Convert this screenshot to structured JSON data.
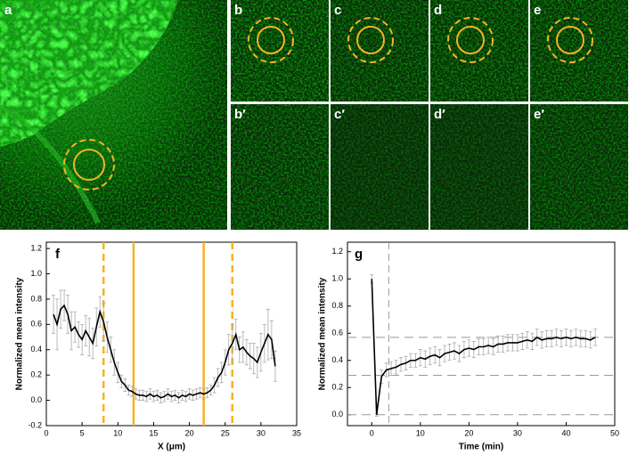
{
  "panels": {
    "a": "a",
    "b": "b",
    "c": "c",
    "d": "d",
    "e": "e",
    "b2": "b′",
    "c2": "c′",
    "d2": "d′",
    "e2": "e′"
  },
  "chart_data": [
    {
      "type": "line",
      "panel_label": "f",
      "x_label": "X (μm)",
      "y_label": "Normalized mean intensity",
      "xlim": [
        0,
        35
      ],
      "xticks": [
        0,
        5,
        10,
        15,
        20,
        25,
        30,
        35
      ],
      "ylim": [
        -0.2,
        1.25
      ],
      "yticks": [
        -0.2,
        {
          "value": 0,
          "label": "0.0"
        },
        0.2,
        0.4,
        0.6,
        0.8,
        {
          "value": 1,
          "label": "1.0"
        },
        1.2
      ],
      "vlines": [
        {
          "x": 8,
          "style": "dashed",
          "color": "#f5b324"
        },
        {
          "x": 12.2,
          "style": "solid",
          "color": "#f5b324"
        },
        {
          "x": 22,
          "style": "solid",
          "color": "#f5b324"
        },
        {
          "x": 26,
          "style": "dashed",
          "color": "#f5b324"
        }
      ],
      "hlines": [],
      "series": [
        {
          "color": "#000000",
          "error_color": "#aaaaaa",
          "x": [
            1,
            1.5,
            2,
            2.5,
            3,
            3.5,
            4,
            4.5,
            5,
            5.5,
            6,
            6.5,
            7,
            7.5,
            8,
            8.5,
            9,
            9.5,
            10,
            10.5,
            11,
            11.5,
            12,
            12.5,
            13,
            13.5,
            14,
            14.5,
            15,
            15.5,
            16,
            16.5,
            17,
            17.5,
            18,
            18.5,
            19,
            19.5,
            20,
            20.5,
            21,
            21.5,
            22,
            22.5,
            23,
            23.5,
            24,
            24.5,
            25,
            25.5,
            26,
            26.5,
            27,
            27.5,
            28,
            28.5,
            29,
            29.5,
            30,
            30.5,
            31,
            31.5,
            32
          ],
          "values": [
            0.68,
            0.6,
            0.72,
            0.75,
            0.68,
            0.55,
            0.58,
            0.52,
            0.48,
            0.55,
            0.5,
            0.45,
            0.58,
            0.7,
            0.62,
            0.5,
            0.4,
            0.3,
            0.22,
            0.15,
            0.12,
            0.08,
            0.07,
            0.05,
            0.04,
            0.04,
            0.03,
            0.05,
            0.03,
            0.04,
            0.02,
            0.03,
            0.05,
            0.03,
            0.04,
            0.02,
            0.04,
            0.03,
            0.05,
            0.04,
            0.05,
            0.06,
            0.05,
            0.06,
            0.08,
            0.12,
            0.18,
            0.22,
            0.3,
            0.4,
            0.45,
            0.52,
            0.4,
            0.42,
            0.38,
            0.35,
            0.33,
            0.3,
            0.38,
            0.45,
            0.52,
            0.48,
            0.27
          ],
          "errors": [
            0.15,
            0.2,
            0.15,
            0.12,
            0.15,
            0.15,
            0.12,
            0.1,
            0.12,
            0.12,
            0.15,
            0.12,
            0.15,
            0.12,
            0.15,
            0.12,
            0.1,
            0.1,
            0.08,
            0.05,
            0.05,
            0.04,
            0.04,
            0.04,
            0.04,
            0.04,
            0.04,
            0.04,
            0.04,
            0.04,
            0.04,
            0.04,
            0.04,
            0.04,
            0.04,
            0.04,
            0.04,
            0.04,
            0.04,
            0.04,
            0.04,
            0.04,
            0.04,
            0.04,
            0.04,
            0.06,
            0.07,
            0.08,
            0.1,
            0.12,
            0.15,
            0.12,
            0.1,
            0.12,
            0.1,
            0.1,
            0.12,
            0.12,
            0.15,
            0.15,
            0.2,
            0.15,
            0.12
          ]
        }
      ]
    },
    {
      "type": "line",
      "panel_label": "g",
      "x_label": "Time (min)",
      "y_label": "Normalized mean intensity",
      "xlim": [
        -5,
        50
      ],
      "xticks": [
        0,
        10,
        20,
        30,
        40,
        50
      ],
      "ylim": [
        -0.08,
        1.27
      ],
      "yticks": [
        {
          "value": 0,
          "label": "0.0"
        },
        0.2,
        0.4,
        0.6,
        0.8,
        {
          "value": 1,
          "label": "1.0"
        },
        1.2
      ],
      "vlines": [
        {
          "x": 3.5,
          "style": "dashed",
          "color": "#999999"
        }
      ],
      "hlines": [
        {
          "y": 0,
          "style": "dashed",
          "color": "#999999"
        },
        {
          "y": 0.29,
          "style": "dashed",
          "color": "#999999"
        },
        {
          "y": 0.57,
          "style": "dashed",
          "color": "#999999"
        }
      ],
      "series": [
        {
          "color": "#000000",
          "error_color": "#aaaaaa",
          "x": [
            0,
            1,
            2,
            3,
            4,
            5,
            6,
            7,
            8,
            9,
            10,
            11,
            12,
            13,
            14,
            15,
            16,
            17,
            18,
            19,
            20,
            21,
            22,
            23,
            24,
            25,
            26,
            27,
            28,
            29,
            30,
            31,
            32,
            33,
            34,
            35,
            36,
            37,
            38,
            39,
            40,
            41,
            42,
            43,
            44,
            45,
            46
          ],
          "values": [
            1.0,
            0.0,
            0.28,
            0.33,
            0.34,
            0.35,
            0.37,
            0.38,
            0.4,
            0.4,
            0.42,
            0.41,
            0.43,
            0.44,
            0.42,
            0.45,
            0.46,
            0.47,
            0.45,
            0.48,
            0.49,
            0.48,
            0.5,
            0.5,
            0.51,
            0.5,
            0.52,
            0.52,
            0.53,
            0.53,
            0.53,
            0.54,
            0.55,
            0.54,
            0.57,
            0.55,
            0.56,
            0.56,
            0.57,
            0.56,
            0.57,
            0.56,
            0.57,
            0.56,
            0.56,
            0.55,
            0.57
          ],
          "errors": [
            0.03,
            0.01,
            0.05,
            0.05,
            0.05,
            0.05,
            0.05,
            0.05,
            0.05,
            0.05,
            0.06,
            0.06,
            0.06,
            0.06,
            0.06,
            0.06,
            0.06,
            0.06,
            0.06,
            0.06,
            0.06,
            0.06,
            0.06,
            0.06,
            0.06,
            0.06,
            0.06,
            0.06,
            0.06,
            0.06,
            0.06,
            0.06,
            0.06,
            0.06,
            0.06,
            0.06,
            0.06,
            0.06,
            0.06,
            0.06,
            0.06,
            0.06,
            0.06,
            0.06,
            0.06,
            0.06,
            0.06
          ]
        }
      ]
    }
  ]
}
